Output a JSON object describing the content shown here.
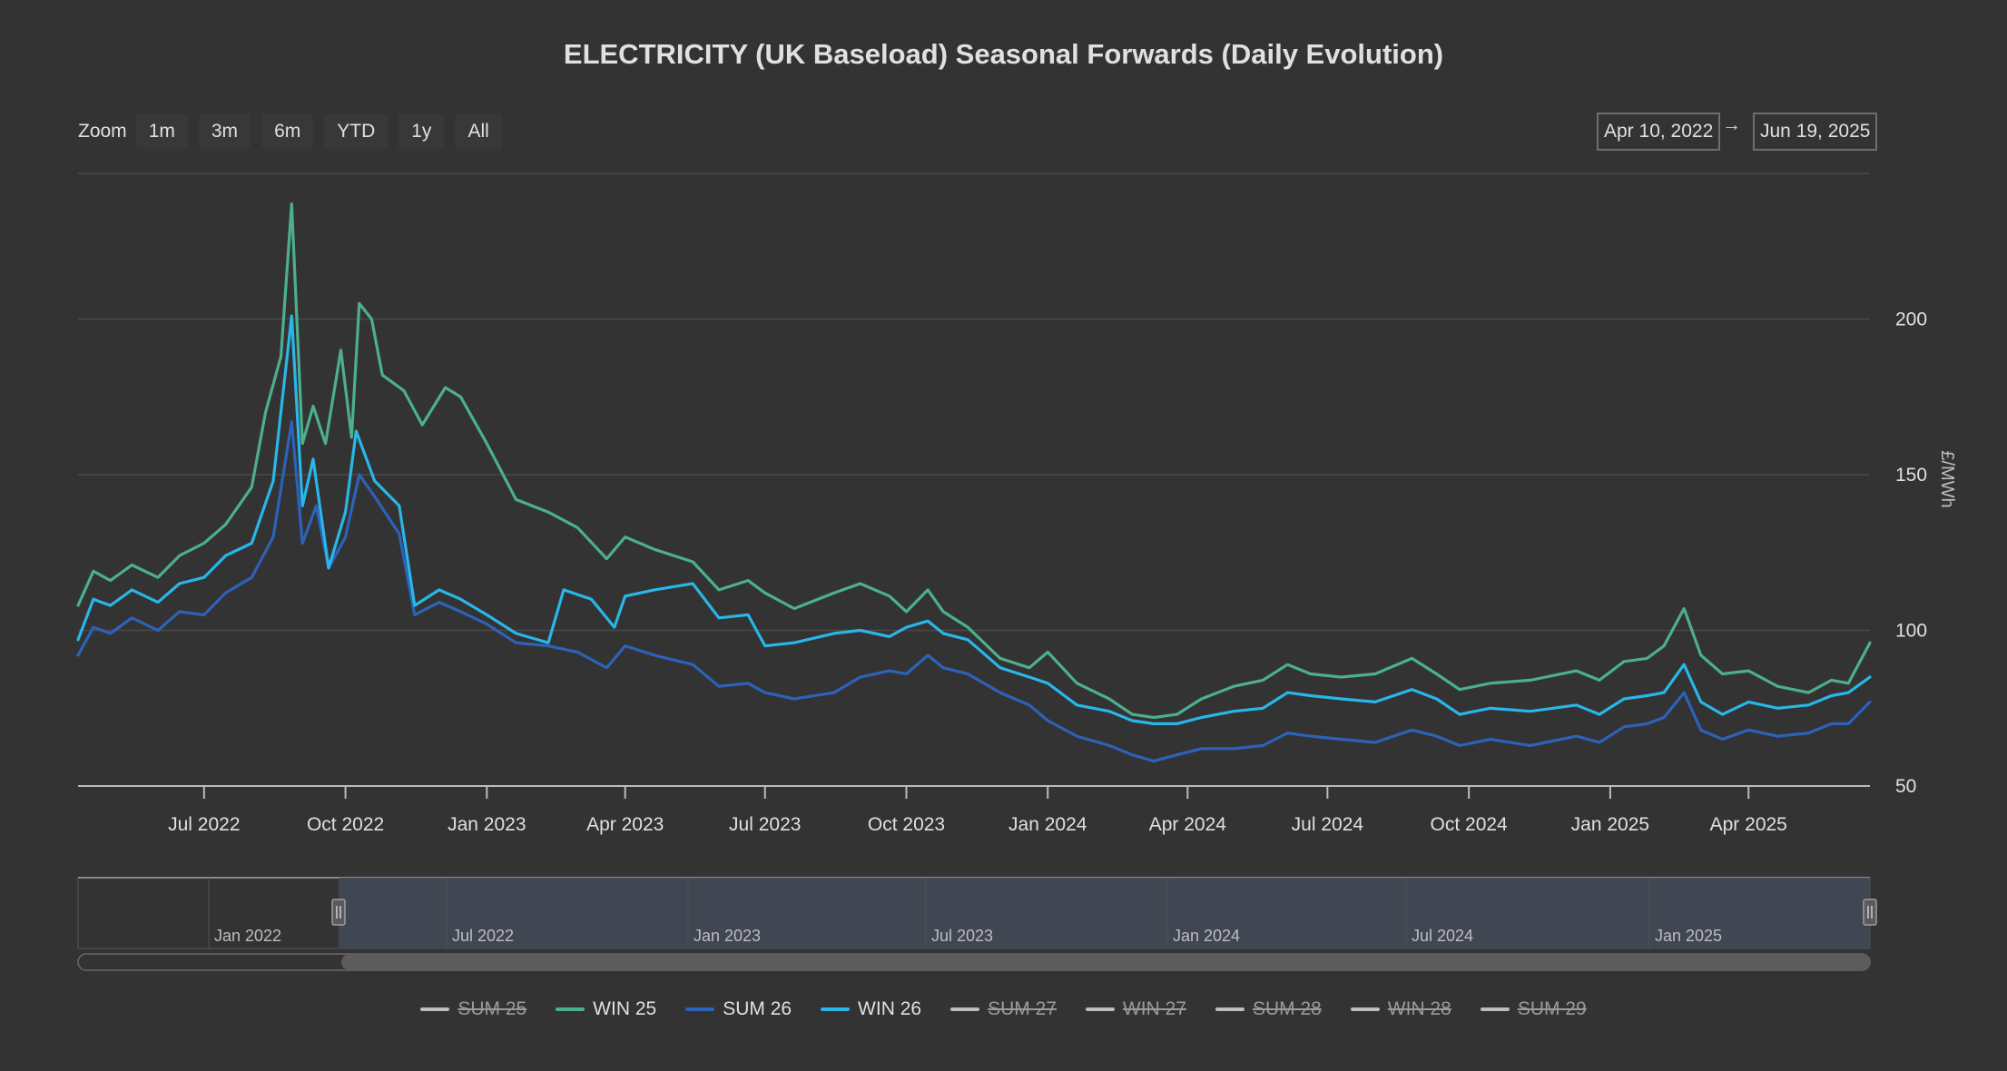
{
  "title": "ELECTRICITY (UK Baseload) Seasonal Forwards (Daily Evolution)",
  "range_selector": {
    "zoom_label": "Zoom",
    "buttons": [
      "1m",
      "3m",
      "6m",
      "YTD",
      "1y",
      "All"
    ],
    "from": "Apr 10, 2022",
    "arrow": "→",
    "to": "Jun 19, 2025"
  },
  "colors": {
    "background": "#333333",
    "grid": "#4a4a4a",
    "axis": "#bbbbbb",
    "navigator_mask": "#434856",
    "scrollbar_thumb": "#5c5c5c",
    "hidden_series": "#bdbdbd"
  },
  "navigator": {
    "labels": [
      "Jan 2022",
      "Jul 2022",
      "Jan 2023",
      "Jul 2023",
      "Jan 2024",
      "Jul 2024",
      "Jan 2025"
    ]
  },
  "chart_data": {
    "type": "line",
    "title": "ELECTRICITY (UK Baseload) Seasonal Forwards (Daily Evolution)",
    "ylabel": "£/MWh",
    "y_ticks": [
      50,
      100,
      150,
      200
    ],
    "ylim": [
      50,
      250
    ],
    "xlim": [
      "2022-04-10",
      "2025-06-19"
    ],
    "x_ticks": [
      {
        "date": "2022-07-01",
        "label": "Jul 2022"
      },
      {
        "date": "2022-10-01",
        "label": "Oct 2022"
      },
      {
        "date": "2023-01-01",
        "label": "Jan 2023"
      },
      {
        "date": "2023-04-01",
        "label": "Apr 2023"
      },
      {
        "date": "2023-07-01",
        "label": "Jul 2023"
      },
      {
        "date": "2023-10-01",
        "label": "Oct 2023"
      },
      {
        "date": "2024-01-01",
        "label": "Jan 2024"
      },
      {
        "date": "2024-04-01",
        "label": "Apr 2024"
      },
      {
        "date": "2024-07-01",
        "label": "Jul 2024"
      },
      {
        "date": "2024-10-01",
        "label": "Oct 2024"
      },
      {
        "date": "2025-01-01",
        "label": "Jan 2025"
      },
      {
        "date": "2025-04-01",
        "label": "Apr 2025"
      }
    ],
    "grid": true,
    "legend_position": "bottom-center",
    "series": [
      {
        "name": "SUM 25",
        "visible": false,
        "color": "#bdbdbd",
        "points": []
      },
      {
        "name": "WIN 25",
        "visible": true,
        "color": "#4caf8e",
        "points": [
          [
            "2022-04-10",
            108
          ],
          [
            "2022-04-20",
            119
          ],
          [
            "2022-05-01",
            116
          ],
          [
            "2022-05-15",
            121
          ],
          [
            "2022-06-01",
            117
          ],
          [
            "2022-06-15",
            124
          ],
          [
            "2022-07-01",
            128
          ],
          [
            "2022-07-15",
            134
          ],
          [
            "2022-08-01",
            146
          ],
          [
            "2022-08-10",
            170
          ],
          [
            "2022-08-20",
            188
          ],
          [
            "2022-08-27",
            237
          ],
          [
            "2022-09-03",
            160
          ],
          [
            "2022-09-10",
            172
          ],
          [
            "2022-09-18",
            160
          ],
          [
            "2022-09-28",
            190
          ],
          [
            "2022-10-05",
            162
          ],
          [
            "2022-10-10",
            205
          ],
          [
            "2022-10-18",
            200
          ],
          [
            "2022-10-25",
            182
          ],
          [
            "2022-11-08",
            177
          ],
          [
            "2022-11-20",
            166
          ],
          [
            "2022-12-05",
            178
          ],
          [
            "2022-12-15",
            175
          ],
          [
            "2023-01-01",
            160
          ],
          [
            "2023-01-20",
            142
          ],
          [
            "2023-02-10",
            138
          ],
          [
            "2023-03-01",
            133
          ],
          [
            "2023-03-20",
            123
          ],
          [
            "2023-04-01",
            130
          ],
          [
            "2023-04-20",
            126
          ],
          [
            "2023-05-15",
            122
          ],
          [
            "2023-06-01",
            113
          ],
          [
            "2023-06-20",
            116
          ],
          [
            "2023-07-01",
            112
          ],
          [
            "2023-07-20",
            107
          ],
          [
            "2023-08-15",
            112
          ],
          [
            "2023-09-01",
            115
          ],
          [
            "2023-09-20",
            111
          ],
          [
            "2023-10-01",
            106
          ],
          [
            "2023-10-15",
            113
          ],
          [
            "2023-10-25",
            106
          ],
          [
            "2023-11-10",
            101
          ],
          [
            "2023-12-01",
            91
          ],
          [
            "2023-12-20",
            88
          ],
          [
            "2024-01-01",
            93
          ],
          [
            "2024-01-20",
            83
          ],
          [
            "2024-02-10",
            78
          ],
          [
            "2024-02-25",
            73
          ],
          [
            "2024-03-10",
            72
          ],
          [
            "2024-03-25",
            73
          ],
          [
            "2024-04-10",
            78
          ],
          [
            "2024-05-01",
            82
          ],
          [
            "2024-05-20",
            84
          ],
          [
            "2024-06-05",
            89
          ],
          [
            "2024-06-20",
            86
          ],
          [
            "2024-07-10",
            85
          ],
          [
            "2024-08-01",
            86
          ],
          [
            "2024-08-25",
            91
          ],
          [
            "2024-09-10",
            86
          ],
          [
            "2024-09-25",
            81
          ],
          [
            "2024-10-15",
            83
          ],
          [
            "2024-11-10",
            84
          ],
          [
            "2024-12-10",
            87
          ],
          [
            "2024-12-25",
            84
          ],
          [
            "2025-01-10",
            90
          ],
          [
            "2025-01-25",
            91
          ],
          [
            "2025-02-05",
            95
          ],
          [
            "2025-02-18",
            107
          ],
          [
            "2025-03-01",
            92
          ],
          [
            "2025-03-15",
            86
          ],
          [
            "2025-04-01",
            87
          ],
          [
            "2025-04-20",
            82
          ],
          [
            "2025-05-10",
            80
          ],
          [
            "2025-05-25",
            84
          ],
          [
            "2025-06-05",
            83
          ],
          [
            "2025-06-19",
            96
          ]
        ]
      },
      {
        "name": "SUM 26",
        "visible": true,
        "color": "#2c62b8",
        "points": [
          [
            "2022-04-10",
            92
          ],
          [
            "2022-04-20",
            101
          ],
          [
            "2022-05-01",
            99
          ],
          [
            "2022-05-15",
            104
          ],
          [
            "2022-06-01",
            100
          ],
          [
            "2022-06-15",
            106
          ],
          [
            "2022-07-01",
            105
          ],
          [
            "2022-07-15",
            112
          ],
          [
            "2022-08-01",
            117
          ],
          [
            "2022-08-15",
            130
          ],
          [
            "2022-08-27",
            167
          ],
          [
            "2022-09-03",
            128
          ],
          [
            "2022-09-12",
            140
          ],
          [
            "2022-09-20",
            120
          ],
          [
            "2022-10-01",
            130
          ],
          [
            "2022-10-10",
            150
          ],
          [
            "2022-10-20",
            143
          ],
          [
            "2022-11-05",
            131
          ],
          [
            "2022-11-15",
            105
          ],
          [
            "2022-12-01",
            109
          ],
          [
            "2022-12-15",
            106
          ],
          [
            "2023-01-01",
            102
          ],
          [
            "2023-01-20",
            96
          ],
          [
            "2023-02-10",
            95
          ],
          [
            "2023-03-01",
            93
          ],
          [
            "2023-03-20",
            88
          ],
          [
            "2023-04-01",
            95
          ],
          [
            "2023-04-20",
            92
          ],
          [
            "2023-05-15",
            89
          ],
          [
            "2023-06-01",
            82
          ],
          [
            "2023-06-20",
            83
          ],
          [
            "2023-07-01",
            80
          ],
          [
            "2023-07-20",
            78
          ],
          [
            "2023-08-15",
            80
          ],
          [
            "2023-09-01",
            85
          ],
          [
            "2023-09-20",
            87
          ],
          [
            "2023-10-01",
            86
          ],
          [
            "2023-10-15",
            92
          ],
          [
            "2023-10-25",
            88
          ],
          [
            "2023-11-10",
            86
          ],
          [
            "2023-12-01",
            80
          ],
          [
            "2023-12-20",
            76
          ],
          [
            "2024-01-01",
            71
          ],
          [
            "2024-01-20",
            66
          ],
          [
            "2024-02-10",
            63
          ],
          [
            "2024-02-25",
            60
          ],
          [
            "2024-03-10",
            58
          ],
          [
            "2024-03-25",
            60
          ],
          [
            "2024-04-10",
            62
          ],
          [
            "2024-05-01",
            62
          ],
          [
            "2024-05-20",
            63
          ],
          [
            "2024-06-05",
            67
          ],
          [
            "2024-06-20",
            66
          ],
          [
            "2024-07-10",
            65
          ],
          [
            "2024-08-01",
            64
          ],
          [
            "2024-08-25",
            68
          ],
          [
            "2024-09-10",
            66
          ],
          [
            "2024-09-25",
            63
          ],
          [
            "2024-10-15",
            65
          ],
          [
            "2024-11-10",
            63
          ],
          [
            "2024-12-10",
            66
          ],
          [
            "2024-12-25",
            64
          ],
          [
            "2025-01-10",
            69
          ],
          [
            "2025-01-25",
            70
          ],
          [
            "2025-02-05",
            72
          ],
          [
            "2025-02-18",
            80
          ],
          [
            "2025-03-01",
            68
          ],
          [
            "2025-03-15",
            65
          ],
          [
            "2025-04-01",
            68
          ],
          [
            "2025-04-20",
            66
          ],
          [
            "2025-05-10",
            67
          ],
          [
            "2025-05-25",
            70
          ],
          [
            "2025-06-05",
            70
          ],
          [
            "2025-06-19",
            77
          ]
        ]
      },
      {
        "name": "WIN 26",
        "visible": true,
        "color": "#29b6e8",
        "points": [
          [
            "2022-04-10",
            97
          ],
          [
            "2022-04-20",
            110
          ],
          [
            "2022-05-01",
            108
          ],
          [
            "2022-05-15",
            113
          ],
          [
            "2022-06-01",
            109
          ],
          [
            "2022-06-15",
            115
          ],
          [
            "2022-07-01",
            117
          ],
          [
            "2022-07-15",
            124
          ],
          [
            "2022-08-01",
            128
          ],
          [
            "2022-08-15",
            148
          ],
          [
            "2022-08-27",
            201
          ],
          [
            "2022-09-03",
            140
          ],
          [
            "2022-09-10",
            155
          ],
          [
            "2022-09-20",
            120
          ],
          [
            "2022-10-01",
            138
          ],
          [
            "2022-10-08",
            164
          ],
          [
            "2022-10-20",
            148
          ],
          [
            "2022-11-05",
            140
          ],
          [
            "2022-11-15",
            108
          ],
          [
            "2022-12-01",
            113
          ],
          [
            "2022-12-15",
            110
          ],
          [
            "2023-01-01",
            105
          ],
          [
            "2023-01-20",
            99
          ],
          [
            "2023-02-10",
            96
          ],
          [
            "2023-02-20",
            113
          ],
          [
            "2023-03-10",
            110
          ],
          [
            "2023-03-25",
            101
          ],
          [
            "2023-04-01",
            111
          ],
          [
            "2023-04-20",
            113
          ],
          [
            "2023-05-15",
            115
          ],
          [
            "2023-06-01",
            104
          ],
          [
            "2023-06-20",
            105
          ],
          [
            "2023-07-01",
            95
          ],
          [
            "2023-07-20",
            96
          ],
          [
            "2023-08-15",
            99
          ],
          [
            "2023-09-01",
            100
          ],
          [
            "2023-09-20",
            98
          ],
          [
            "2023-10-01",
            101
          ],
          [
            "2023-10-15",
            103
          ],
          [
            "2023-10-25",
            99
          ],
          [
            "2023-11-10",
            97
          ],
          [
            "2023-12-01",
            88
          ],
          [
            "2023-12-20",
            85
          ],
          [
            "2024-01-01",
            83
          ],
          [
            "2024-01-20",
            76
          ],
          [
            "2024-02-10",
            74
          ],
          [
            "2024-02-25",
            71
          ],
          [
            "2024-03-10",
            70
          ],
          [
            "2024-03-25",
            70
          ],
          [
            "2024-04-10",
            72
          ],
          [
            "2024-05-01",
            74
          ],
          [
            "2024-05-20",
            75
          ],
          [
            "2024-06-05",
            80
          ],
          [
            "2024-06-20",
            79
          ],
          [
            "2024-07-10",
            78
          ],
          [
            "2024-08-01",
            77
          ],
          [
            "2024-08-25",
            81
          ],
          [
            "2024-09-10",
            78
          ],
          [
            "2024-09-25",
            73
          ],
          [
            "2024-10-15",
            75
          ],
          [
            "2024-11-10",
            74
          ],
          [
            "2024-12-10",
            76
          ],
          [
            "2024-12-25",
            73
          ],
          [
            "2025-01-10",
            78
          ],
          [
            "2025-01-25",
            79
          ],
          [
            "2025-02-05",
            80
          ],
          [
            "2025-02-18",
            89
          ],
          [
            "2025-03-01",
            77
          ],
          [
            "2025-03-15",
            73
          ],
          [
            "2025-04-01",
            77
          ],
          [
            "2025-04-20",
            75
          ],
          [
            "2025-05-10",
            76
          ],
          [
            "2025-05-25",
            79
          ],
          [
            "2025-06-05",
            80
          ],
          [
            "2025-06-19",
            85
          ]
        ]
      },
      {
        "name": "SUM 27",
        "visible": false,
        "color": "#bdbdbd",
        "points": []
      },
      {
        "name": "WIN 27",
        "visible": false,
        "color": "#bdbdbd",
        "points": []
      },
      {
        "name": "SUM 28",
        "visible": false,
        "color": "#bdbdbd",
        "points": []
      },
      {
        "name": "WIN 28",
        "visible": false,
        "color": "#bdbdbd",
        "points": []
      },
      {
        "name": "SUM 29",
        "visible": false,
        "color": "#bdbdbd",
        "points": []
      }
    ]
  }
}
